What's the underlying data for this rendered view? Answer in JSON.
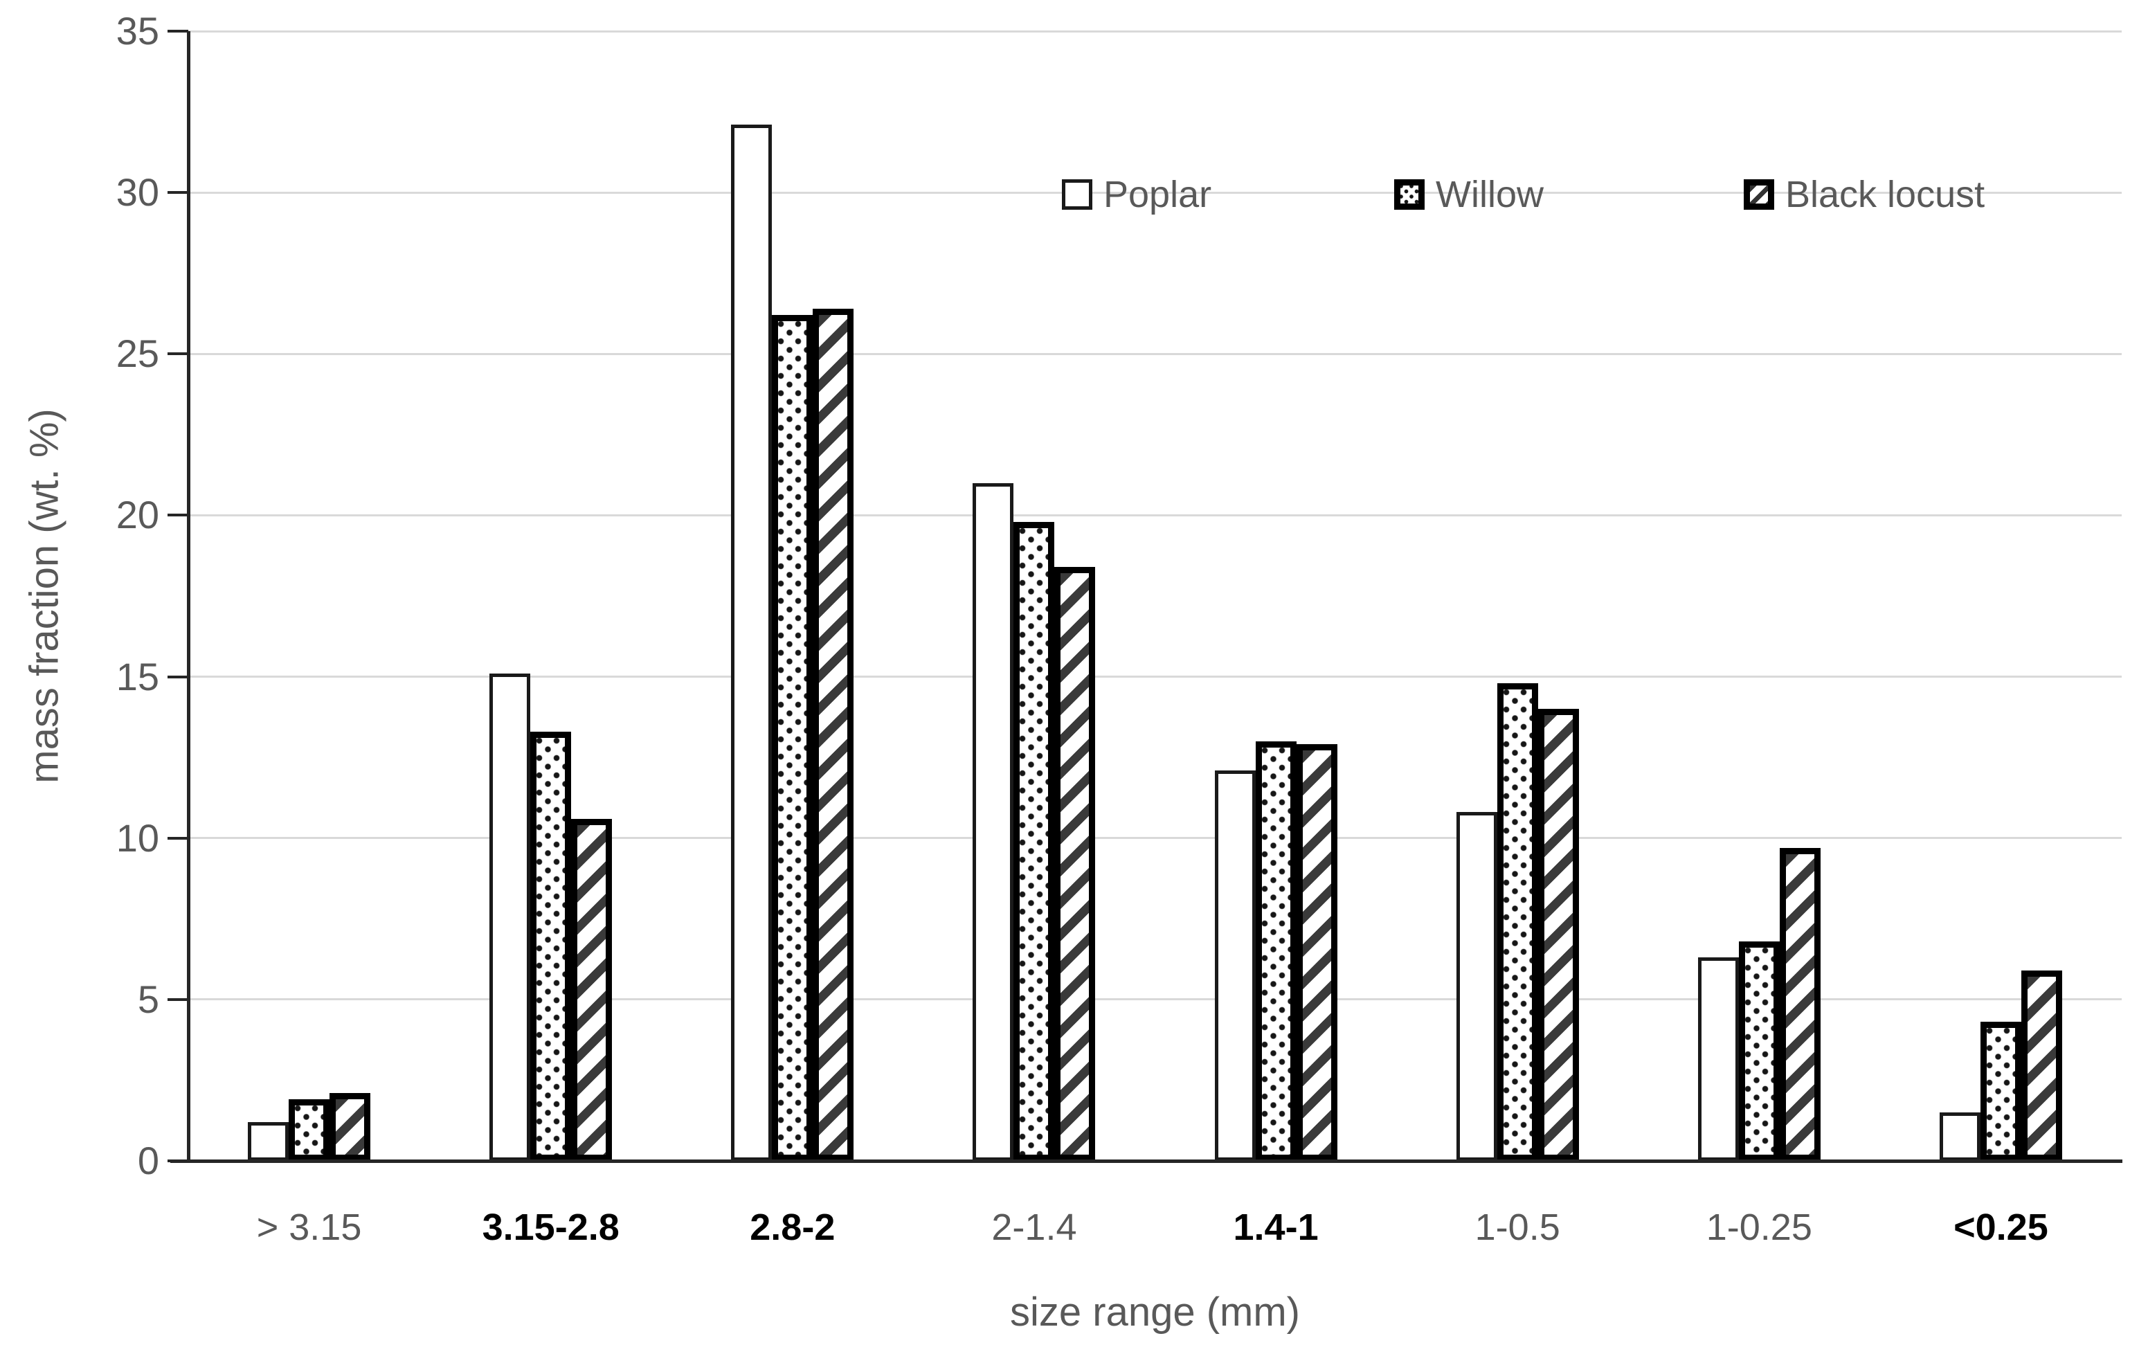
{
  "chart_data": {
    "type": "bar",
    "title": "",
    "xlabel": "size range (mm)",
    "ylabel": "mass fraction (wt. %)",
    "ylim": [
      0,
      35
    ],
    "y_ticks": [
      0,
      5,
      10,
      15,
      20,
      25,
      30,
      35
    ],
    "grid": true,
    "legend_position": "inside-top-right",
    "categories": [
      "> 3.15",
      "3.15-2.8",
      "2.8-2",
      "2-1.4",
      "1.4-1",
      "1-0.5",
      "1-0.25",
      "<0.25"
    ],
    "bold_categories": [
      "3.15-2.8",
      "2.8-2",
      "1.4-1",
      "<0.25"
    ],
    "series": [
      {
        "name": "Poplar",
        "pattern": "solid-white",
        "values": [
          1.2,
          15.1,
          32.1,
          21.0,
          12.1,
          10.8,
          6.3,
          1.5
        ]
      },
      {
        "name": "Willow",
        "pattern": "dots",
        "values": [
          1.9,
          13.3,
          26.2,
          19.8,
          13.0,
          14.8,
          6.8,
          4.3
        ]
      },
      {
        "name": "Black locust",
        "pattern": "diagonal-hatch",
        "values": [
          2.1,
          10.6,
          26.4,
          18.4,
          12.9,
          14.0,
          9.7,
          5.9
        ]
      }
    ]
  },
  "colors": {
    "axis_line": "#262626",
    "gridline": "#d9d9d9",
    "label_gray": "#595959",
    "label_black": "#000000",
    "bar_outline": "#000000",
    "hatch": "#3a3a3a",
    "background": "#ffffff"
  }
}
